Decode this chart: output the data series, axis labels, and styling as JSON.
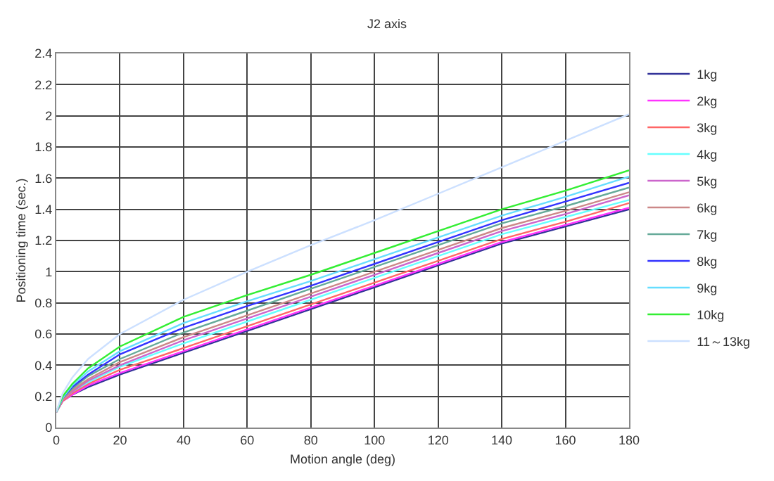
{
  "chart_data": {
    "type": "line",
    "title": "J2 axis",
    "xlabel": "Motion angle (deg)",
    "ylabel": "Positioning time (sec.)",
    "x": [
      0,
      2,
      5,
      10,
      20,
      40,
      60,
      80,
      100,
      120,
      140,
      160,
      180
    ],
    "xlim": [
      0,
      180
    ],
    "xticks": [
      0,
      20,
      40,
      60,
      80,
      100,
      120,
      140,
      160,
      180
    ],
    "ylim": [
      0,
      2.4
    ],
    "yticks": [
      0,
      0.2,
      0.4,
      0.6,
      0.8,
      1,
      1.2,
      1.4,
      1.6,
      1.8,
      2,
      2.2,
      2.4
    ],
    "grid": true,
    "legend": "right",
    "marker": "none",
    "line_style": "solid",
    "series": [
      {
        "name": "1kg",
        "color": "#333399",
        "values": [
          0.1,
          0.17,
          0.21,
          0.26,
          0.34,
          0.48,
          0.62,
          0.76,
          0.9,
          1.04,
          1.18,
          1.29,
          1.4
        ]
      },
      {
        "name": "2kg",
        "color": "#ff33ff",
        "values": [
          0.1,
          0.17,
          0.21,
          0.27,
          0.35,
          0.49,
          0.63,
          0.77,
          0.91,
          1.05,
          1.19,
          1.3,
          1.41
        ]
      },
      {
        "name": "3kg",
        "color": "#ff6666",
        "values": [
          0.1,
          0.17,
          0.22,
          0.28,
          0.37,
          0.51,
          0.65,
          0.79,
          0.93,
          1.07,
          1.21,
          1.32,
          1.44
        ]
      },
      {
        "name": "4kg",
        "color": "#66ffff",
        "values": [
          0.1,
          0.18,
          0.23,
          0.29,
          0.39,
          0.54,
          0.68,
          0.82,
          0.96,
          1.1,
          1.24,
          1.35,
          1.46
        ]
      },
      {
        "name": "5kg",
        "color": "#cc66cc",
        "values": [
          0.1,
          0.18,
          0.23,
          0.3,
          0.4,
          0.56,
          0.7,
          0.84,
          0.98,
          1.12,
          1.26,
          1.37,
          1.49
        ]
      },
      {
        "name": "6kg",
        "color": "#cc8888",
        "values": [
          0.1,
          0.18,
          0.24,
          0.31,
          0.42,
          0.58,
          0.72,
          0.86,
          1,
          1.14,
          1.28,
          1.39,
          1.51
        ]
      },
      {
        "name": "7kg",
        "color": "#66aa99",
        "values": [
          0.1,
          0.19,
          0.25,
          0.33,
          0.44,
          0.61,
          0.75,
          0.89,
          1.03,
          1.17,
          1.31,
          1.42,
          1.54
        ]
      },
      {
        "name": "8kg",
        "color": "#3333ff",
        "values": [
          0.1,
          0.19,
          0.26,
          0.34,
          0.47,
          0.64,
          0.78,
          0.91,
          1.05,
          1.19,
          1.33,
          1.45,
          1.57
        ]
      },
      {
        "name": "9kg",
        "color": "#66ddff",
        "values": [
          0.1,
          0.19,
          0.27,
          0.36,
          0.49,
          0.67,
          0.81,
          0.94,
          1.08,
          1.22,
          1.36,
          1.48,
          1.61
        ]
      },
      {
        "name": "10kg",
        "color": "#33ee33",
        "values": [
          0.1,
          0.2,
          0.28,
          0.38,
          0.52,
          0.71,
          0.85,
          0.98,
          1.12,
          1.26,
          1.4,
          1.52,
          1.65
        ]
      },
      {
        "name": "11～13kg",
        "color": "#cce0ff",
        "values": [
          0.1,
          0.22,
          0.32,
          0.44,
          0.6,
          0.82,
          1,
          1.17,
          1.33,
          1.5,
          1.67,
          1.84,
          2.01
        ]
      }
    ]
  }
}
